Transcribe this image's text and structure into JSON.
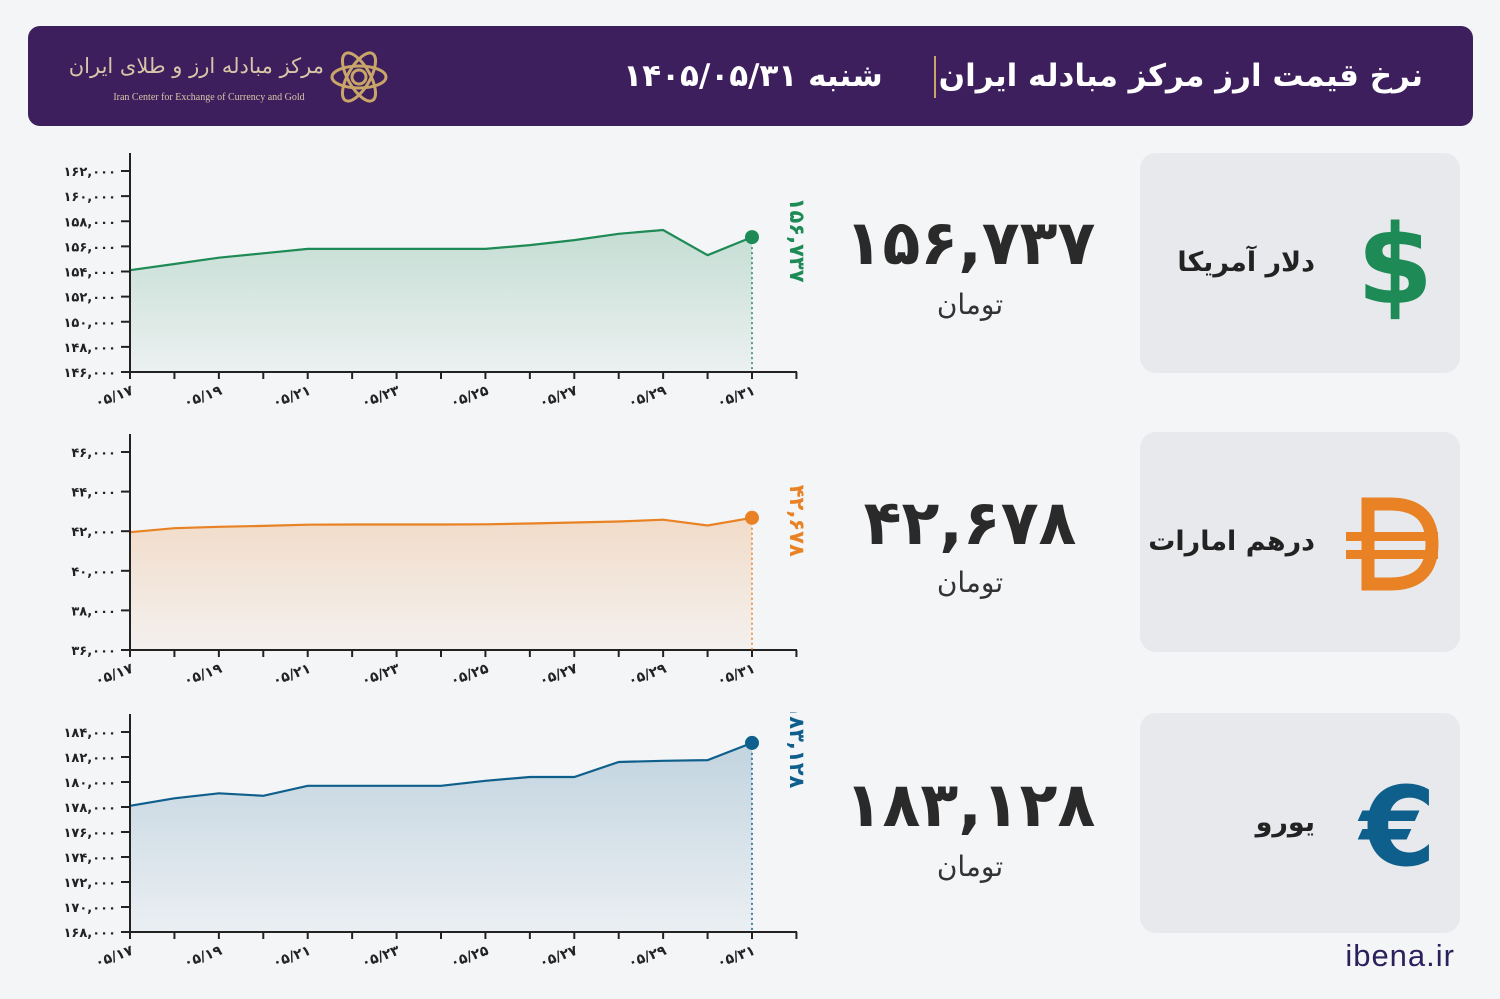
{
  "header": {
    "title": "نرخ قیمت ارز مرکز مبادله ایران",
    "date": "شنبه  ۱۴۰۵/۰۵/۳۱",
    "logo_name": "مرکز مبادله ارز و طلای ایران",
    "logo_sub": "Iran Center for Exchange of Currency and Gold"
  },
  "brand": "ibena.ir",
  "colors": {
    "header_bg": "#3c1f5c",
    "usd": "#1e8a55",
    "aed": "#e88224",
    "eur": "#0f5f8c"
  },
  "currencies": [
    {
      "name": "دلار آمریکا",
      "icon": "dollar-icon",
      "symbol": "$",
      "price": "۱۵۶,۷۳۷",
      "unit": "تومان"
    },
    {
      "name": "درهم امارات",
      "icon": "dirham-icon",
      "symbol": "Đ",
      "price": "۴۲,۶۷۸",
      "unit": "تومان"
    },
    {
      "name": "یورو",
      "icon": "euro-icon",
      "symbol": "€",
      "price": "۱۸۳,۱۲۸",
      "unit": "تومان"
    }
  ],
  "chart_data": [
    {
      "type": "area",
      "x_tick_labels": [
        "۰۵/۱۷",
        "۰۵/۱۹",
        "۰۵/۲۱",
        "۰۵/۲۳",
        "۰۵/۲۵",
        "۰۵/۲۷",
        "۰۵/۲۹",
        "۰۵/۳۱"
      ],
      "x": [
        17,
        18,
        19,
        20,
        21,
        22,
        23,
        24,
        25,
        26,
        27,
        28,
        29,
        30,
        31
      ],
      "values": [
        154100,
        154600,
        155100,
        155450,
        155800,
        155800,
        155800,
        155800,
        155800,
        156100,
        156500,
        157000,
        157300,
        155300,
        156737
      ],
      "ylim": [
        146000,
        162000
      ],
      "y_ticks": [
        146000,
        148000,
        150000,
        152000,
        154000,
        156000,
        158000,
        160000,
        162000
      ],
      "y_tick_labels": [
        "۱۴۶,۰۰۰",
        "۱۴۸,۰۰۰",
        "۱۵۰,۰۰۰",
        "۱۵۲,۰۰۰",
        "۱۵۴,۰۰۰",
        "۱۵۶,۰۰۰",
        "۱۵۸,۰۰۰",
        "۱۶۰,۰۰۰",
        "۱۶۲,۰۰۰"
      ],
      "last_label": "۱۵۶,۷۳۷",
      "color": "#1e8a55"
    },
    {
      "type": "area",
      "x_tick_labels": [
        "۰۵/۱۷",
        "۰۵/۱۹",
        "۰۵/۲۱",
        "۰۵/۲۳",
        "۰۵/۲۵",
        "۰۵/۲۷",
        "۰۵/۲۹",
        "۰۵/۳۱"
      ],
      "x": [
        17,
        18,
        19,
        20,
        21,
        22,
        23,
        24,
        25,
        26,
        27,
        28,
        29,
        30,
        31
      ],
      "values": [
        41950,
        42150,
        42220,
        42270,
        42330,
        42340,
        42340,
        42340,
        42350,
        42390,
        42440,
        42490,
        42580,
        42290,
        42678
      ],
      "ylim": [
        36000,
        46000
      ],
      "y_ticks": [
        36000,
        38000,
        40000,
        42000,
        44000,
        46000
      ],
      "y_tick_labels": [
        "۳۶,۰۰۰",
        "۳۸,۰۰۰",
        "۴۰,۰۰۰",
        "۴۲,۰۰۰",
        "۴۴,۰۰۰",
        "۴۶,۰۰۰"
      ],
      "last_label": "۴۲,۶۷۸",
      "color": "#e88224"
    },
    {
      "type": "area",
      "x": [
        17,
        18,
        19,
        20,
        21,
        22,
        23,
        24,
        25,
        26,
        27,
        28,
        29,
        30,
        31
      ],
      "x_tick_labels": [
        "۰۵/۱۷",
        "۰۵/۱۹",
        "۰۵/۲۱",
        "۰۵/۲۳",
        "۰۵/۲۵",
        "۰۵/۲۷",
        "۰۵/۲۹",
        "۰۵/۳۱"
      ],
      "values": [
        178100,
        178700,
        179100,
        178900,
        179700,
        179700,
        179700,
        179700,
        180100,
        180400,
        180400,
        181600,
        181700,
        181750,
        183128
      ],
      "ylim": [
        168000,
        184000
      ],
      "y_ticks": [
        168000,
        170000,
        172000,
        174000,
        176000,
        178000,
        180000,
        182000,
        184000
      ],
      "y_tick_labels": [
        "۱۶۸,۰۰۰",
        "۱۷۰,۰۰۰",
        "۱۷۲,۰۰۰",
        "۱۷۴,۰۰۰",
        "۱۷۶,۰۰۰",
        "۱۷۸,۰۰۰",
        "۱۸۰,۰۰۰",
        "۱۸۲,۰۰۰",
        "۱۸۴,۰۰۰"
      ],
      "last_label": "۱۸۳,۱۲۸",
      "color": "#0f5f8c"
    }
  ]
}
